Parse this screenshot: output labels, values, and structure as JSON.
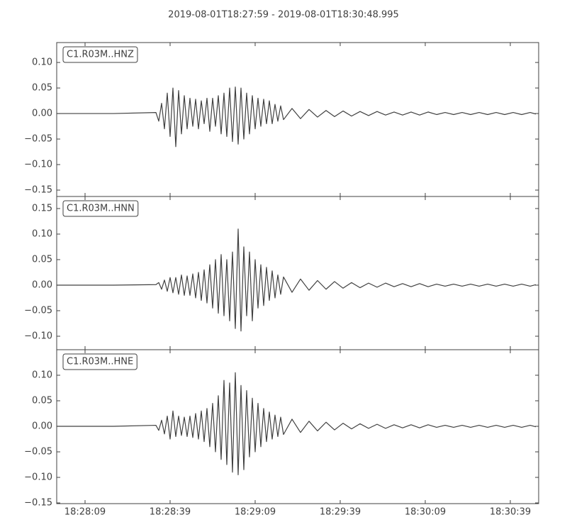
{
  "chart_data": [
    {
      "type": "line",
      "title": "2019-08-01T18:27:59  -  2019-08-01T18:30:48.995",
      "label": "C1.R03M..HNZ",
      "color": "#404040",
      "xlim": [
        0,
        169.995
      ],
      "ylim": [
        -0.1625,
        0.139
      ],
      "yticks": [
        {
          "value": -0.15,
          "label": "−0.15"
        },
        {
          "value": -0.1,
          "label": "−0.10"
        },
        {
          "value": -0.05,
          "label": "−0.05"
        },
        {
          "value": 0,
          "label": "0.00"
        },
        {
          "value": 0.05,
          "label": "0.05"
        },
        {
          "value": 0.1,
          "label": "0.10"
        }
      ],
      "x": [
        0,
        20,
        35,
        36,
        37,
        38,
        39,
        40,
        41,
        42,
        43,
        44,
        45,
        46,
        47,
        48,
        49,
        50,
        51,
        52,
        53,
        54,
        55,
        56,
        57,
        58,
        59,
        60,
        61,
        62,
        63,
        64,
        65,
        66,
        67,
        68,
        69,
        70,
        71,
        72,
        73,
        74,
        75,
        76,
        77,
        78,
        79,
        80,
        83,
        86,
        89,
        92,
        95,
        98,
        101,
        104,
        107,
        110,
        113,
        116,
        119,
        122,
        125,
        128,
        131,
        134,
        137,
        140,
        143,
        146,
        149,
        152,
        155,
        158,
        161,
        164,
        167,
        169
      ],
      "values": [
        0,
        0,
        0.002,
        -0.015,
        0.02,
        -0.03,
        0.04,
        -0.045,
        0.05,
        -0.065,
        0.045,
        -0.04,
        0.035,
        -0.03,
        0.03,
        -0.025,
        0.028,
        -0.03,
        0.025,
        -0.02,
        0.03,
        -0.035,
        0.03,
        -0.025,
        0.035,
        -0.04,
        0.04,
        -0.045,
        0.05,
        -0.055,
        0.052,
        -0.06,
        0.05,
        -0.05,
        0.04,
        -0.04,
        0.035,
        -0.03,
        0.03,
        -0.025,
        0.028,
        -0.02,
        0.025,
        -0.02,
        0.018,
        -0.015,
        0.015,
        -0.012,
        0.01,
        -0.01,
        0.008,
        -0.007,
        0.006,
        -0.006,
        0.005,
        -0.005,
        0.004,
        -0.004,
        0.004,
        -0.003,
        0.003,
        -0.003,
        0.003,
        -0.003,
        0.003,
        -0.002,
        0.002,
        -0.002,
        0.002,
        -0.002,
        0.002,
        -0.002,
        0.002,
        -0.002,
        0.002,
        -0.002,
        0.002,
        -0.001
      ]
    },
    {
      "type": "line",
      "label": "C1.R03M..HNN",
      "color": "#404040",
      "xlim": [
        0,
        169.995
      ],
      "ylim": [
        -0.1264,
        0.1736
      ],
      "yticks": [
        {
          "value": -0.1,
          "label": "−0.10"
        },
        {
          "value": -0.05,
          "label": "−0.05"
        },
        {
          "value": 0,
          "label": "0.00"
        },
        {
          "value": 0.05,
          "label": "0.05"
        },
        {
          "value": 0.1,
          "label": "0.10"
        },
        {
          "value": 0.15,
          "label": "0.15"
        }
      ],
      "x": [
        0,
        20,
        35,
        36,
        37,
        38,
        39,
        40,
        41,
        42,
        43,
        44,
        45,
        46,
        47,
        48,
        49,
        50,
        51,
        52,
        53,
        54,
        55,
        56,
        57,
        58,
        59,
        60,
        61,
        62,
        63,
        64,
        65,
        66,
        67,
        68,
        69,
        70,
        71,
        72,
        73,
        74,
        75,
        76,
        77,
        78,
        79,
        80,
        83,
        86,
        89,
        92,
        95,
        98,
        101,
        104,
        107,
        110,
        113,
        116,
        119,
        122,
        125,
        128,
        131,
        134,
        137,
        140,
        143,
        146,
        149,
        152,
        155,
        158,
        161,
        164,
        167,
        169
      ],
      "values": [
        0,
        0,
        0.001,
        0.005,
        -0.008,
        0.01,
        -0.012,
        0.015,
        -0.015,
        0.015,
        -0.018,
        0.02,
        -0.02,
        0.018,
        -0.02,
        0.022,
        -0.025,
        0.025,
        -0.03,
        0.03,
        -0.035,
        0.04,
        -0.045,
        0.05,
        -0.055,
        0.06,
        -0.06,
        0.05,
        -0.07,
        0.065,
        -0.085,
        0.11,
        -0.09,
        0.075,
        -0.06,
        0.065,
        -0.07,
        0.05,
        -0.045,
        0.04,
        -0.04,
        0.035,
        -0.03,
        0.028,
        -0.025,
        0.02,
        -0.018,
        0.016,
        -0.014,
        0.012,
        -0.01,
        0.009,
        -0.008,
        0.007,
        -0.006,
        0.005,
        -0.005,
        0.004,
        -0.004,
        0.004,
        -0.003,
        0.003,
        -0.003,
        0.003,
        -0.003,
        0.002,
        -0.002,
        0.002,
        -0.002,
        0.002,
        -0.002,
        0.002,
        -0.002,
        0.002,
        -0.002,
        0.002,
        -0.002,
        0.001
      ]
    },
    {
      "type": "line",
      "label": "C1.R03M..HNE",
      "color": "#404040",
      "xlim": [
        0,
        169.995
      ],
      "ylim": [
        -0.1514,
        0.15
      ],
      "yticks": [
        {
          "value": -0.15,
          "label": "−0.15"
        },
        {
          "value": -0.1,
          "label": "−0.10"
        },
        {
          "value": -0.05,
          "label": "−0.05"
        },
        {
          "value": 0,
          "label": "0.00"
        },
        {
          "value": 0.05,
          "label": "0.05"
        },
        {
          "value": 0.1,
          "label": "0.10"
        }
      ],
      "xticks": [
        {
          "value": 10,
          "label": "18:28:09"
        },
        {
          "value": 40,
          "label": "18:28:39"
        },
        {
          "value": 70,
          "label": "18:29:09"
        },
        {
          "value": 100,
          "label": "18:29:39"
        },
        {
          "value": 130,
          "label": "18:30:09"
        },
        {
          "value": 160,
          "label": "18:30:39"
        }
      ],
      "x": [
        0,
        20,
        35,
        36,
        37,
        38,
        39,
        40,
        41,
        42,
        43,
        44,
        45,
        46,
        47,
        48,
        49,
        50,
        51,
        52,
        53,
        54,
        55,
        56,
        57,
        58,
        59,
        60,
        61,
        62,
        63,
        64,
        65,
        66,
        67,
        68,
        69,
        70,
        71,
        72,
        73,
        74,
        75,
        76,
        77,
        78,
        79,
        80,
        83,
        86,
        89,
        92,
        95,
        98,
        101,
        104,
        107,
        110,
        113,
        116,
        119,
        122,
        125,
        128,
        131,
        134,
        137,
        140,
        143,
        146,
        149,
        152,
        155,
        158,
        161,
        164,
        167,
        169
      ],
      "values": [
        0,
        0,
        0.002,
        -0.008,
        0.012,
        -0.015,
        0.02,
        -0.025,
        0.03,
        -0.02,
        0.02,
        -0.018,
        0.018,
        -0.02,
        0.02,
        -0.022,
        0.025,
        -0.025,
        0.03,
        -0.03,
        0.035,
        -0.04,
        0.045,
        -0.05,
        0.06,
        -0.065,
        0.09,
        -0.075,
        0.085,
        -0.09,
        0.105,
        -0.095,
        0.08,
        -0.085,
        0.07,
        -0.06,
        0.055,
        -0.05,
        0.045,
        -0.04,
        0.035,
        -0.03,
        0.028,
        -0.025,
        0.022,
        -0.02,
        0.018,
        -0.016,
        0.014,
        -0.012,
        0.01,
        -0.009,
        0.008,
        -0.007,
        0.006,
        -0.005,
        0.005,
        -0.004,
        0.004,
        -0.004,
        0.003,
        -0.003,
        0.003,
        -0.003,
        0.003,
        -0.002,
        0.002,
        -0.002,
        0.002,
        -0.002,
        0.002,
        -0.002,
        0.002,
        -0.002,
        0.002,
        -0.002,
        0.002,
        -0.001
      ]
    }
  ]
}
